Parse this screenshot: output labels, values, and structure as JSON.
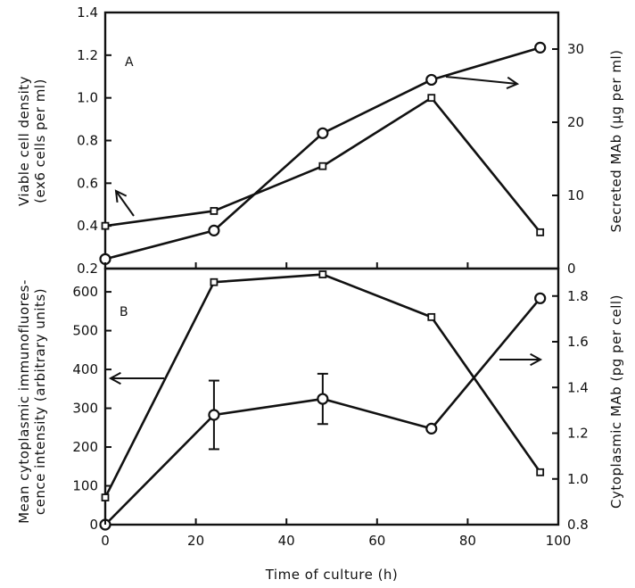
{
  "chart_data": [
    {
      "panel": "A",
      "type": "line",
      "xlabel": "Time of culture (h)",
      "xlim": [
        0,
        100
      ],
      "y_left": {
        "label_line1": "Viable cell density",
        "label_line2": "(ex6 cells per ml)",
        "lim": [
          0.2,
          1.4
        ],
        "ticks": [
          "0.2",
          "0.4",
          "0.6",
          "0.8",
          "1.0",
          "1.2",
          "1.4"
        ]
      },
      "y_right": {
        "label": "Secreted MAb (µg per ml)",
        "lim": [
          0,
          35
        ],
        "ticks": [
          "0",
          "10",
          "20",
          "30"
        ]
      },
      "series": [
        {
          "marker": "square",
          "axis": "left",
          "x": [
            0,
            24,
            48,
            72,
            96
          ],
          "y": [
            0.4,
            0.47,
            0.68,
            1.0,
            0.37
          ]
        },
        {
          "marker": "circle",
          "axis": "right",
          "x": [
            0,
            24,
            48,
            72,
            96
          ],
          "y": [
            1.3,
            5.2,
            18.5,
            25.8,
            30.2
          ]
        }
      ],
      "arrows": [
        {
          "points_to": "left",
          "near_series": "square"
        },
        {
          "points_to": "right",
          "near_series": "circle"
        }
      ]
    },
    {
      "panel": "B",
      "type": "line",
      "xlabel": "Time of culture (h)",
      "xlim": [
        0,
        100
      ],
      "x_ticks": [
        "0",
        "20",
        "40",
        "60",
        "80",
        "100"
      ],
      "y_left": {
        "label_line1": "Mean cytoplasmic immunofluores-",
        "label_line2": "cence intensity (arbitrary units)",
        "lim": [
          0,
          660
        ],
        "ticks": [
          "0",
          "100",
          "200",
          "300",
          "400",
          "500",
          "600"
        ]
      },
      "y_right": {
        "label": "Cytoplasmic MAb (pg per cell)",
        "lim": [
          0.8,
          1.92
        ],
        "ticks": [
          "0.8",
          "1.0",
          "1.2",
          "1.4",
          "1.6",
          "1.8"
        ]
      },
      "series": [
        {
          "marker": "square",
          "axis": "left",
          "x": [
            0,
            24,
            48,
            72,
            96
          ],
          "y": [
            70,
            625,
            645,
            535,
            135
          ]
        },
        {
          "marker": "circle",
          "axis": "right",
          "x": [
            0,
            24,
            48,
            72,
            96
          ],
          "y": [
            0.8,
            1.28,
            1.35,
            1.22,
            1.79
          ],
          "err": [
            0,
            0.15,
            0.11,
            0,
            0
          ]
        }
      ],
      "arrows": [
        {
          "points_to": "left",
          "near_series": "square"
        },
        {
          "points_to": "right",
          "near_series": "circle"
        }
      ]
    }
  ]
}
